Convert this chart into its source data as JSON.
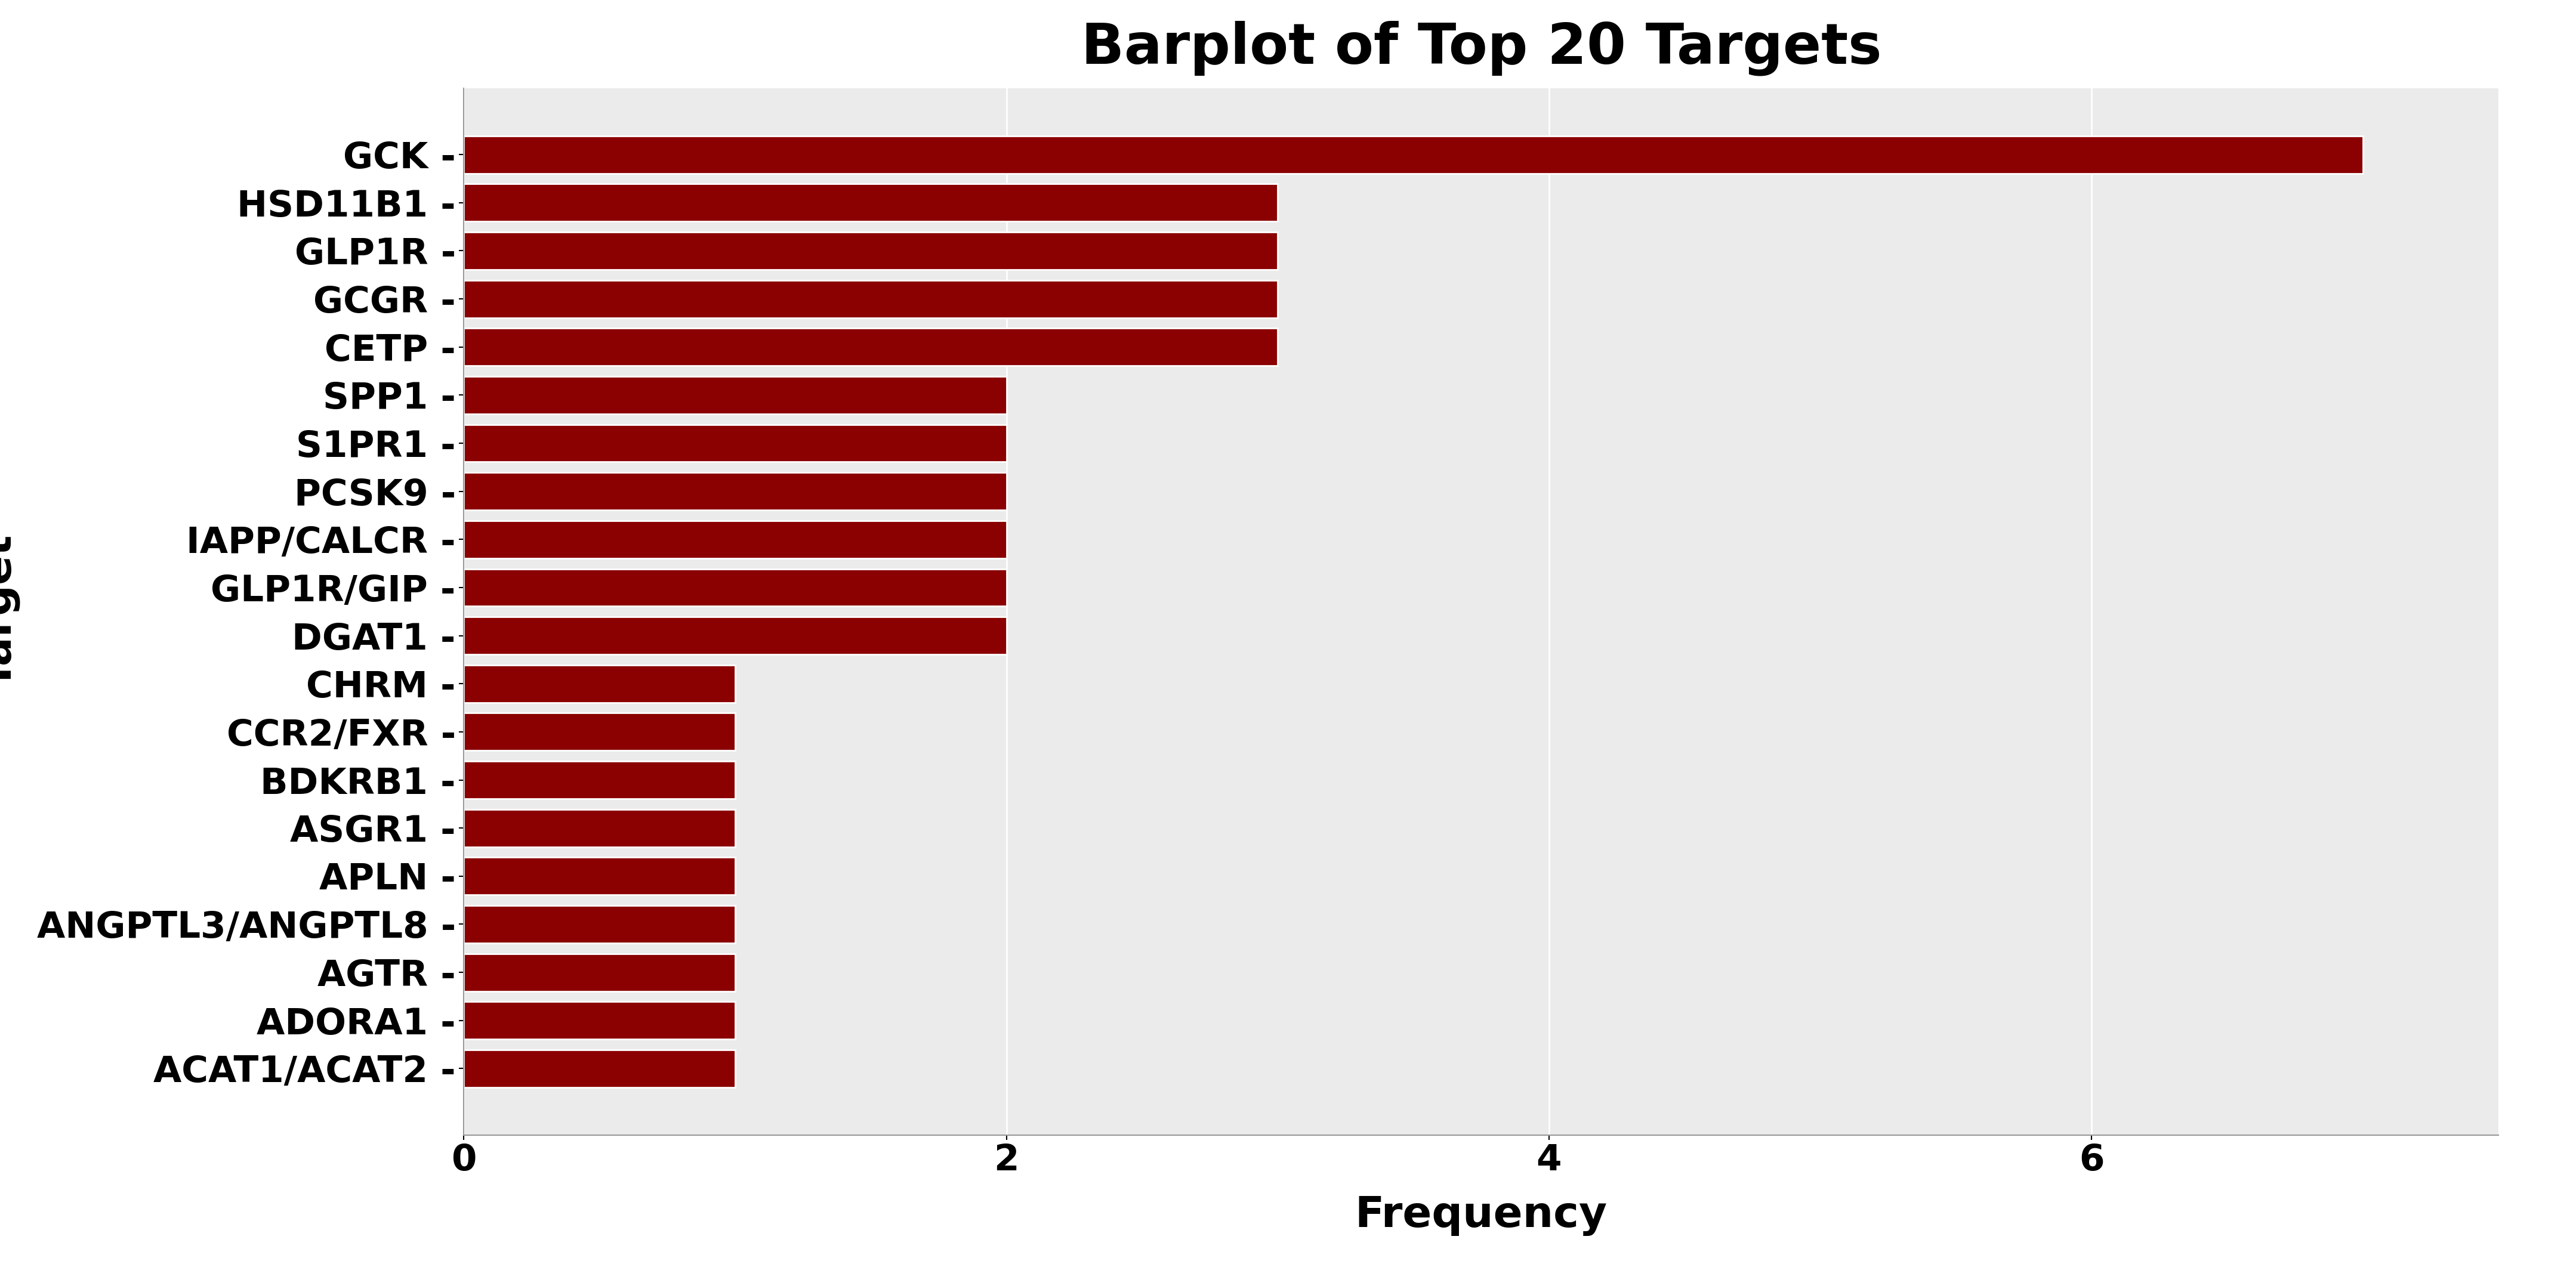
{
  "title": "Barplot of Top 20 Targets",
  "xlabel": "Frequency",
  "ylabel": "Target",
  "categories": [
    "GCK",
    "HSD11B1",
    "GLP1R",
    "GCGR",
    "CETP",
    "SPP1",
    "S1PR1",
    "PCSK9",
    "IAPP/CALCR",
    "GLP1R/GIP",
    "DGAT1",
    "CHRM",
    "CCR2/FXR",
    "BDKRB1",
    "ASGR1",
    "APLN",
    "ANGPTL3/ANGPTL8",
    "AGTR",
    "ADORA1",
    "ACAT1/ACAT2"
  ],
  "values": [
    7,
    3,
    3,
    3,
    3,
    2,
    2,
    2,
    2,
    2,
    2,
    1,
    1,
    1,
    1,
    1,
    1,
    1,
    1,
    1
  ],
  "bar_color": "#8B0000",
  "plot_bg_color": "#EBEBEB",
  "fig_bg_color": "#FFFFFF",
  "grid_color": "#FFFFFF",
  "bar_edgecolor": "#FFFFFF",
  "title_fontsize": 68,
  "label_fontsize": 52,
  "tick_fontsize": 44,
  "bar_linewidth": 2.0,
  "bar_height": 0.78,
  "xlim": [
    0,
    7.5
  ],
  "xticks": [
    0,
    2,
    4,
    6
  ]
}
